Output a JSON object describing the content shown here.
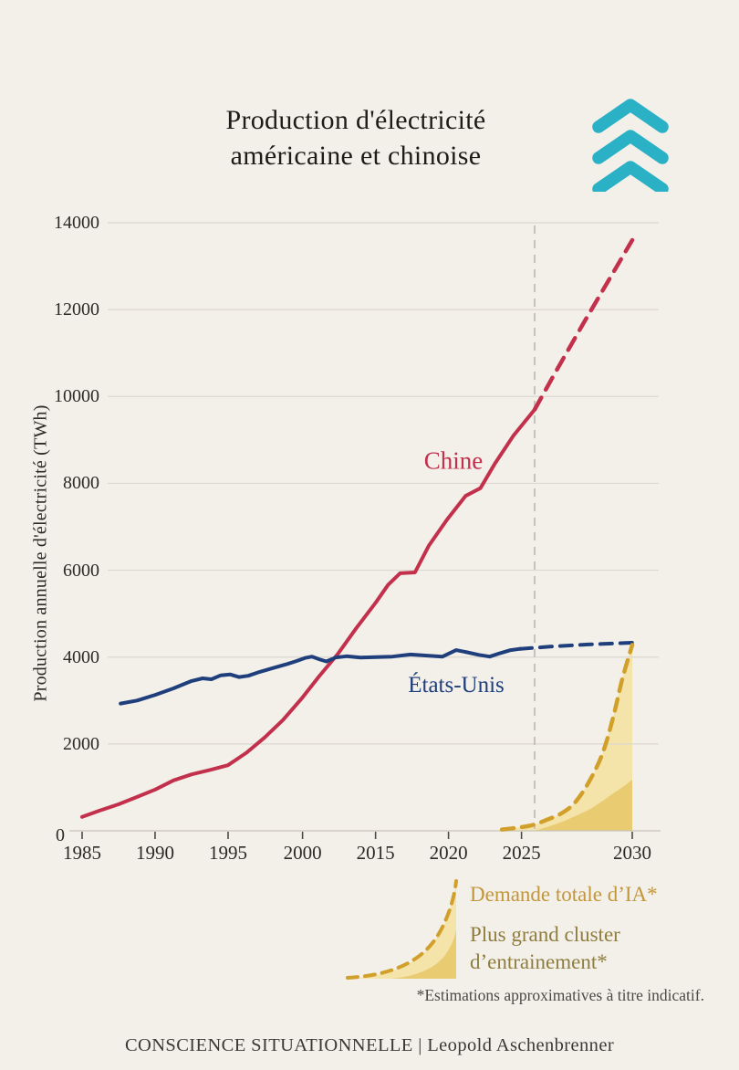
{
  "page": {
    "background": "#f3f0ea",
    "title_line1": "Production d'électricité",
    "title_line2": "américaine et chinoise",
    "footer": "CONSCIENCE SITUATIONNELLE | Leopold Aschenbrenner"
  },
  "logo": {
    "icon": "triple-chevron-up",
    "color": "#2ab1c5"
  },
  "legend": {
    "ai_demand_label": "Demande totale d’IA*",
    "cluster_label_line1": "Plus grand cluster",
    "cluster_label_line2": "d’entrainement*",
    "footnote": "*Estimations approximatives à titre indicatif."
  },
  "chart_data": {
    "type": "line",
    "title": "Production d'électricité américaine et chinoise",
    "ylabel": "Production annuelle d'électricité (TWh)",
    "unit": "TWh",
    "ylim": [
      0,
      14000
    ],
    "y_ticks": [
      0,
      2000,
      4000,
      6000,
      8000,
      10000,
      12000,
      14000
    ],
    "x_ticks": [
      {
        "label": "1985",
        "pos": 0.0
      },
      {
        "label": "1990",
        "pos": 0.1326
      },
      {
        "label": "1995",
        "pos": 0.2653
      },
      {
        "label": "2000",
        "pos": 0.4007
      },
      {
        "label": "2015",
        "pos": 0.5334
      },
      {
        "label": "2020",
        "pos": 0.666
      },
      {
        "label": "2025",
        "pos": 0.7987
      },
      {
        "label": "2030",
        "pos": 1.0
      }
    ],
    "grid": true,
    "legend_position": "bottom-right",
    "now_line_pos": 0.8225,
    "colors": {
      "china": "#c3304c",
      "us": "#1f3e7c",
      "ai_gold": "#d1a02b",
      "ai_fill_light": "#f4e4a9",
      "ai_fill_dark": "#e9cb72",
      "gridline": "#dcd8d0",
      "now_line": "#c5c2bb"
    },
    "series": [
      {
        "name": "Chine",
        "color": "#c3304c",
        "style": "solid",
        "width": 4,
        "points": [
          [
            0.0,
            320
          ],
          [
            0.033,
            470
          ],
          [
            0.066,
            610
          ],
          [
            0.1,
            780
          ],
          [
            0.133,
            950
          ],
          [
            0.166,
            1160
          ],
          [
            0.199,
            1300
          ],
          [
            0.232,
            1400
          ],
          [
            0.265,
            1510
          ],
          [
            0.299,
            1800
          ],
          [
            0.332,
            2150
          ],
          [
            0.365,
            2550
          ],
          [
            0.4,
            3060
          ],
          [
            0.431,
            3560
          ],
          [
            0.464,
            4060
          ],
          [
            0.498,
            4660
          ],
          [
            0.534,
            5260
          ],
          [
            0.556,
            5660
          ],
          [
            0.578,
            5930
          ],
          [
            0.605,
            5950
          ],
          [
            0.63,
            6560
          ],
          [
            0.663,
            7160
          ],
          [
            0.697,
            7710
          ],
          [
            0.724,
            7890
          ],
          [
            0.75,
            8450
          ],
          [
            0.784,
            9100
          ],
          [
            0.8225,
            9700
          ]
        ]
      },
      {
        "name": "Chine (projection)",
        "color": "#c3304c",
        "style": "dashed",
        "width": 4.5,
        "dash": [
          15,
          10
        ],
        "points": [
          [
            0.8225,
            9700
          ],
          [
            0.86,
            10550
          ],
          [
            0.912,
            11700
          ],
          [
            1.0,
            13600
          ]
        ]
      },
      {
        "name": "États-Unis",
        "color": "#1f3e7c",
        "style": "solid",
        "width": 4,
        "points": [
          [
            0.07,
            2930
          ],
          [
            0.1,
            3000
          ],
          [
            0.133,
            3130
          ],
          [
            0.166,
            3280
          ],
          [
            0.199,
            3450
          ],
          [
            0.219,
            3510
          ],
          [
            0.235,
            3490
          ],
          [
            0.252,
            3580
          ],
          [
            0.269,
            3600
          ],
          [
            0.285,
            3540
          ],
          [
            0.302,
            3570
          ],
          [
            0.323,
            3660
          ],
          [
            0.348,
            3750
          ],
          [
            0.373,
            3840
          ],
          [
            0.39,
            3910
          ],
          [
            0.405,
            3980
          ],
          [
            0.418,
            4010
          ],
          [
            0.431,
            3950
          ],
          [
            0.444,
            3900
          ],
          [
            0.461,
            3990
          ],
          [
            0.481,
            4020
          ],
          [
            0.506,
            3990
          ],
          [
            0.534,
            4000
          ],
          [
            0.564,
            4010
          ],
          [
            0.597,
            4060
          ],
          [
            0.63,
            4030
          ],
          [
            0.655,
            4010
          ],
          [
            0.68,
            4160
          ],
          [
            0.7,
            4110
          ],
          [
            0.721,
            4050
          ],
          [
            0.741,
            4010
          ],
          [
            0.76,
            4090
          ],
          [
            0.779,
            4160
          ],
          [
            0.796,
            4190
          ]
        ]
      },
      {
        "name": "États-Unis (projection)",
        "color": "#1f3e7c",
        "style": "dashed",
        "width": 4,
        "dash": [
          13,
          9
        ],
        "points": [
          [
            0.796,
            4190
          ],
          [
            0.85,
            4240
          ],
          [
            0.92,
            4290
          ],
          [
            1.0,
            4330
          ]
        ]
      },
      {
        "name": "Demande totale d’IA*",
        "color": "#d1a02b",
        "style": "dashed",
        "width": 4.5,
        "dash": [
          13,
          9
        ],
        "smooth": true,
        "fill": "#f4e4a9",
        "points": [
          [
            0.763,
            30
          ],
          [
            0.796,
            80
          ],
          [
            0.821,
            140
          ],
          [
            0.846,
            260
          ],
          [
            0.871,
            400
          ],
          [
            0.895,
            640
          ],
          [
            0.92,
            1100
          ],
          [
            0.945,
            1750
          ],
          [
            0.965,
            2600
          ],
          [
            0.982,
            3500
          ],
          [
            1.0,
            4280
          ]
        ]
      },
      {
        "name": "Plus grand cluster d’entrainement*",
        "color": "#e9cb72",
        "style": "area",
        "smooth": true,
        "fill": "#e9cb72",
        "points": [
          [
            0.821,
            0
          ],
          [
            0.846,
            90
          ],
          [
            0.871,
            200
          ],
          [
            0.895,
            330
          ],
          [
            0.92,
            480
          ],
          [
            0.945,
            680
          ],
          [
            0.965,
            860
          ],
          [
            0.982,
            1000
          ],
          [
            1.0,
            1180
          ]
        ]
      }
    ]
  }
}
